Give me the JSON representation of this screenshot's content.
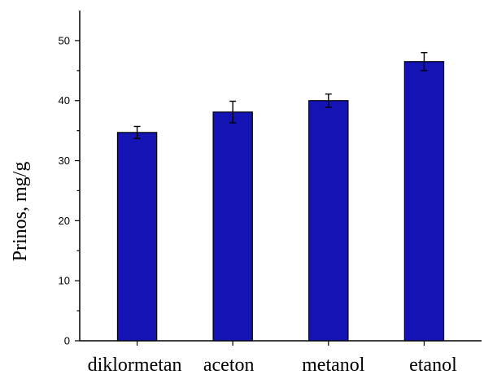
{
  "chart_data": {
    "type": "bar",
    "categories": [
      "diklormetan",
      "aceton",
      "metanol",
      "etanol"
    ],
    "values": [
      34.7,
      38.1,
      40.0,
      46.5
    ],
    "errors": [
      1.0,
      1.8,
      1.1,
      1.5
    ],
    "title": "",
    "xlabel": "",
    "ylabel": "Prinos, mg/g",
    "ylim": [
      0,
      55
    ],
    "yticks": [
      0,
      10,
      20,
      30,
      40,
      50
    ],
    "grid": false,
    "colors": {
      "bar_fill": "#1414b4",
      "bar_stroke": "#000000",
      "axis": "#000000"
    }
  }
}
